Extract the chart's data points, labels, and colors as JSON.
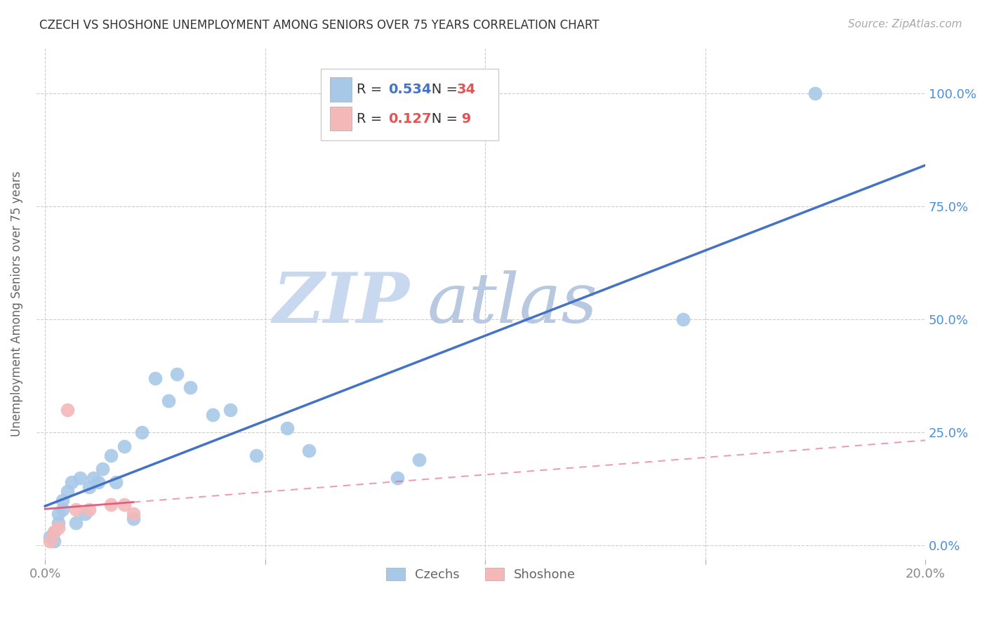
{
  "title": "CZECH VS SHOSHONE UNEMPLOYMENT AMONG SENIORS OVER 75 YEARS CORRELATION CHART",
  "source": "Source: ZipAtlas.com",
  "ylabel": "Unemployment Among Seniors over 75 years",
  "xmin": 0.0,
  "xmax": 0.2,
  "ymin": -0.03,
  "ymax": 1.1,
  "czech_R": 0.534,
  "czech_N": 34,
  "shoshone_R": 0.127,
  "shoshone_N": 9,
  "czech_color": "#a8c8e8",
  "shoshone_color": "#f4b8b8",
  "czech_line_color": "#4472c4",
  "shoshone_line_color": "#e06080",
  "watermark_zip": "ZIP",
  "watermark_atlas": "atlas",
  "watermark_color_zip": "#c8d8ee",
  "watermark_color_atlas": "#b8c8e0",
  "czech_x": [
    0.001,
    0.002,
    0.002,
    0.003,
    0.003,
    0.004,
    0.004,
    0.005,
    0.006,
    0.007,
    0.008,
    0.009,
    0.01,
    0.011,
    0.012,
    0.013,
    0.015,
    0.016,
    0.018,
    0.02,
    0.022,
    0.025,
    0.028,
    0.03,
    0.033,
    0.038,
    0.042,
    0.048,
    0.055,
    0.06,
    0.08,
    0.085,
    0.145,
    0.175
  ],
  "czech_y": [
    0.02,
    0.01,
    0.03,
    0.05,
    0.07,
    0.08,
    0.1,
    0.12,
    0.14,
    0.05,
    0.15,
    0.07,
    0.13,
    0.15,
    0.14,
    0.17,
    0.2,
    0.14,
    0.22,
    0.06,
    0.25,
    0.37,
    0.32,
    0.38,
    0.35,
    0.29,
    0.3,
    0.2,
    0.26,
    0.21,
    0.15,
    0.19,
    0.5,
    1.0
  ],
  "shoshone_x": [
    0.001,
    0.002,
    0.003,
    0.005,
    0.007,
    0.01,
    0.015,
    0.018,
    0.02
  ],
  "shoshone_y": [
    0.01,
    0.03,
    0.04,
    0.3,
    0.08,
    0.08,
    0.09,
    0.09,
    0.07
  ],
  "legend_R_color_czech": "#4472c4",
  "legend_N_color_czech": "#e05555",
  "legend_R_color_shoshone": "#e05555",
  "legend_N_color_shoshone": "#e05555",
  "ytick_positions": [
    0.0,
    0.25,
    0.5,
    0.75,
    1.0
  ],
  "ytick_labels": [
    "0.0%",
    "25.0%",
    "50.0%",
    "75.0%",
    "100.0%"
  ],
  "xtick_positions": [
    0.0,
    0.05,
    0.1,
    0.15,
    0.2
  ],
  "xtick_labels": [
    "0.0%",
    "",
    "",
    "",
    "20.0%"
  ]
}
